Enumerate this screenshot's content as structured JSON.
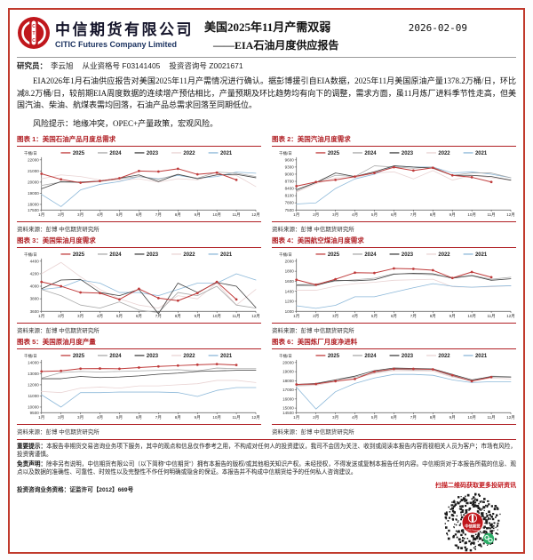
{
  "header": {
    "brand_zh": "中信期货有限公司",
    "brand_en": "CITIC Futures Company Limited",
    "title_line1": "美国2025年11月产需双弱",
    "title_line2": "——EIA石油月度供应报告",
    "date": "2026-02-09"
  },
  "researcher": {
    "label": "研究员：",
    "name": "李云旭",
    "cert1": "从业资格号 F03141405",
    "cert2": "投资咨询号 Z0021671"
  },
  "body": {
    "paragraph": "EIA2026年1月石油供应报告对美国2025年11月产需情况进行确认。据彭博援引自EIA数据，2025年11月美国原油产量1378.2万桶/日，环比减8.2万桶/日，较前期EIA周度数据的连续增产预估相比，产量预期及环比趋势均有向下的调整，需求方面，虽11月炼厂进料季节性走高，但美国汽油、柴油、航煤表需均回落，石油产品总需求回落至同期低位。",
    "risk": "风险提示：地缘冲突，OPEC+产量政策，宏观风险。"
  },
  "footer": {
    "notice_label": "重要提示：",
    "notice_text": "本报告非期货交易咨询业务项下服务，其中的观点和信息仅作参考之用，不构成对任何人的投资建议，我司不会因为关注、收到或阅读本报告内容而视相关人员为客户；市场有风险，投资需谨慎。",
    "disclaimer_label": "免责声明：",
    "disclaimer_text": "除非另有说明，中信期货有限公司（以下简称“中信期货”）拥有本报告的版权/或其他相关知识产权。未经授权，不得发送或复制本报告任何内容。中信期货对于本报告所载的信息、观点以及数据的准确性、可靠性、时效性以及完整性不作任何明确或隐含的保证。本报告并不构成中信期货给予的任何私人咨询建议。",
    "license": "投资咨询业务资格：证监许可【2012】669号",
    "qr_caption": "扫描二维码获取更多投研资讯",
    "qr_center_zh": "中信期货",
    "qr_center_en": "CITIC Futures"
  },
  "colors": {
    "frame_red": "#c0392b",
    "title_red": "#b01f24",
    "s2025": "#bf3a3a",
    "s2024": "#a8a8a8",
    "s2023": "#3f3f3f",
    "s2022": "#e9d3d3",
    "s2021": "#8cb8d9"
  },
  "chart_data": [
    {
      "type": "line",
      "title": "图表 1：美国石油产品月度总需求",
      "ylabel": "千桶/日",
      "source": "资料来源：彭博 中信期货研究所",
      "categories": [
        "1月",
        "2月",
        "3月",
        "4月",
        "5月",
        "6月",
        "7月",
        "8月",
        "9月",
        "10月",
        "11月",
        "12月"
      ],
      "yticks": [
        17500,
        18000,
        19000,
        20000,
        21000,
        22000
      ],
      "series": [
        {
          "name": "2025",
          "color": "#bf3a3a",
          "marker": true,
          "values": [
            20750,
            20250,
            19950,
            20100,
            20350,
            21000,
            20950,
            21200,
            20700,
            20850,
            20200
          ]
        },
        {
          "name": "2024",
          "color": "#a8a8a8",
          "values": [
            19700,
            20000,
            19950,
            20050,
            20300,
            20500,
            20250,
            20700,
            20350,
            20900,
            20800,
            20500
          ]
        },
        {
          "name": "2023",
          "color": "#3f3f3f",
          "values": [
            19400,
            20050,
            20000,
            20100,
            20350,
            20650,
            20050,
            20700,
            20300,
            20650,
            20700,
            20400
          ]
        },
        {
          "name": "2022",
          "color": "#e9d3d3",
          "values": [
            20300,
            20650,
            20500,
            20200,
            20150,
            20300,
            20000,
            20300,
            20200,
            20700,
            20600,
            19600
          ]
        },
        {
          "name": "2021",
          "color": "#8cb8d9",
          "values": [
            18900,
            17800,
            19300,
            19800,
            20050,
            20500,
            20300,
            20600,
            20350,
            20500,
            20900,
            20800
          ]
        }
      ]
    },
    {
      "type": "line",
      "title": "图表 2：美国汽油月度需求",
      "ylabel": "千桶/日",
      "source": "资料来源：彭博 中信期货研究所",
      "categories": [
        "1月",
        "2月",
        "3月",
        "4月",
        "5月",
        "6月",
        "7月",
        "8月",
        "9月",
        "10月",
        "11月",
        "12月"
      ],
      "yticks": [
        7500,
        7800,
        8100,
        8400,
        8700,
        9000,
        9300,
        9600
      ],
      "series": [
        {
          "name": "2025",
          "color": "#bf3a3a",
          "marker": true,
          "values": [
            8500,
            8670,
            8760,
            8900,
            9050,
            9290,
            9150,
            9270,
            8950,
            8870,
            8670
          ]
        },
        {
          "name": "2024",
          "color": "#a8a8a8",
          "values": [
            8300,
            8650,
            8950,
            8900,
            9350,
            9300,
            9250,
            9300,
            8950,
            9050,
            9050,
            8850
          ]
        },
        {
          "name": "2023",
          "color": "#3f3f3f",
          "values": [
            8350,
            8650,
            9050,
            8900,
            9100,
            9350,
            9300,
            9250,
            8950,
            8950,
            8900,
            8750
          ]
        },
        {
          "name": "2022",
          "color": "#e9d3d3",
          "values": [
            8250,
            8600,
            8850,
            8850,
            9050,
            9100,
            8800,
            9150,
            8750,
            8950,
            8850,
            8750
          ]
        },
        {
          "name": "2021",
          "color": "#8cb8d9",
          "values": [
            7750,
            7800,
            8400,
            8800,
            9000,
            9350,
            9300,
            9300,
            9050,
            9100,
            9000,
            8850
          ]
        }
      ]
    },
    {
      "type": "line",
      "title": "图表 3：美国柴油月度需求",
      "ylabel": "千桶/日",
      "source": "资料来源：彭博 中信期货研究所",
      "categories": [
        "1月",
        "2月",
        "3月",
        "4月",
        "5月",
        "6月",
        "7月",
        "8月",
        "9月",
        "10月",
        "11月",
        "12月"
      ],
      "yticks": [
        3600,
        3800,
        4000,
        4200,
        4400
      ],
      "series": [
        {
          "name": "2025",
          "color": "#bf3a3a",
          "marker": true,
          "values": [
            4070,
            4000,
            3900,
            3890,
            3790,
            3960,
            3810,
            3770,
            3890,
            4070,
            3790
          ]
        },
        {
          "name": "2024",
          "color": "#a8a8a8",
          "values": [
            3950,
            3850,
            3700,
            3650,
            3750,
            3620,
            3580,
            3900,
            3850,
            4000,
            3700,
            3650
          ]
        },
        {
          "name": "2023",
          "color": "#3f3f3f",
          "values": [
            3960,
            4100,
            4110,
            3900,
            3850,
            3950,
            3560,
            4050,
            3900,
            4060,
            4000,
            3660
          ]
        },
        {
          "name": "2022",
          "color": "#e9d3d3",
          "values": [
            4200,
            4380,
            4150,
            3950,
            3800,
            3700,
            3650,
            3850,
            3800,
            4050,
            3700,
            3950
          ]
        },
        {
          "name": "2021",
          "color": "#8cb8d9",
          "values": [
            3950,
            3980,
            4100,
            4050,
            3900,
            3900,
            3850,
            3950,
            4050,
            4050,
            4200,
            4100
          ]
        }
      ]
    },
    {
      "type": "line",
      "title": "图表 4：美国航空煤油月度需求",
      "ylabel": "千桶/日",
      "source": "资料来源：彭博 中信期货研究所",
      "categories": [
        "1月",
        "2月",
        "3月",
        "4月",
        "5月",
        "6月",
        "7月",
        "8月",
        "9月",
        "10月",
        "11月",
        "12月"
      ],
      "yticks": [
        1000,
        1200,
        1400,
        1600,
        1800,
        2000
      ],
      "series": [
        {
          "name": "2025",
          "color": "#bf3a3a",
          "marker": true,
          "values": [
            1630,
            1530,
            1640,
            1770,
            1765,
            1855,
            1845,
            1820,
            1665,
            1785,
            1680
          ]
        },
        {
          "name": "2024",
          "color": "#a8a8a8",
          "values": [
            1530,
            1545,
            1600,
            1630,
            1660,
            1750,
            1745,
            1730,
            1670,
            1720,
            1640,
            1680
          ]
        },
        {
          "name": "2023",
          "color": "#3f3f3f",
          "values": [
            1520,
            1515,
            1620,
            1610,
            1630,
            1740,
            1760,
            1750,
            1660,
            1710,
            1620,
            1650
          ]
        },
        {
          "name": "2022",
          "color": "#e9d3d3",
          "values": [
            1420,
            1420,
            1500,
            1550,
            1580,
            1620,
            1630,
            1640,
            1490,
            1480,
            1490,
            1510
          ]
        },
        {
          "name": "2021",
          "color": "#8cb8d9",
          "values": [
            1110,
            1060,
            1120,
            1290,
            1290,
            1380,
            1470,
            1550,
            1500,
            1480,
            1500,
            1510
          ]
        }
      ]
    },
    {
      "type": "line",
      "title": "图表 5：美国原油月度产量",
      "ylabel": "千桶/日",
      "source": "资料来源：彭博 中信期货研究所",
      "categories": [
        "1月",
        "2月",
        "3月",
        "4月",
        "5月",
        "6月",
        "7月",
        "8月",
        "9月",
        "10月",
        "11月",
        "12月"
      ],
      "yticks": [
        9500,
        10000,
        11000,
        12000,
        13000,
        14000
      ],
      "series": [
        {
          "name": "2025",
          "color": "#bf3a3a",
          "marker": true,
          "values": [
            13200,
            13250,
            13450,
            13460,
            13440,
            13550,
            13650,
            13720,
            13800,
            13860,
            13780
          ]
        },
        {
          "name": "2024",
          "color": "#a8a8a8",
          "values": [
            12600,
            13100,
            13200,
            13150,
            13200,
            13250,
            13300,
            13350,
            13250,
            13500,
            13450,
            13450
          ]
        },
        {
          "name": "2023",
          "color": "#3f3f3f",
          "values": [
            12550,
            12550,
            12750,
            12650,
            12700,
            12800,
            12950,
            13050,
            13200,
            13250,
            13300,
            13300
          ]
        },
        {
          "name": "2022",
          "color": "#e9d3d3",
          "values": [
            11400,
            11300,
            11700,
            11800,
            11700,
            11900,
            11900,
            12000,
            12100,
            12400,
            12400,
            12200
          ]
        },
        {
          "name": "2021",
          "color": "#8cb8d9",
          "values": [
            11100,
            10000,
            11300,
            11300,
            11350,
            11350,
            11350,
            11300,
            10950,
            11500,
            11750,
            11750
          ]
        }
      ]
    },
    {
      "type": "line",
      "title": "图表 6：美国炼厂月度净进料",
      "ylabel": "千桶/日",
      "source": "资料来源：彭博 中信期货研究所",
      "categories": [
        "1月",
        "2月",
        "3月",
        "4月",
        "5月",
        "6月",
        "7月",
        "8月",
        "9月",
        "10月",
        "11月",
        "12月"
      ],
      "yticks": [
        14500,
        15000,
        16000,
        17000,
        18000,
        19000,
        20000
      ],
      "series": [
        {
          "name": "2025",
          "color": "#bf3a3a",
          "marker": true,
          "values": [
            17600,
            17650,
            17950,
            18200,
            19000,
            19300,
            19300,
            19250,
            18600,
            17950,
            18400
          ]
        },
        {
          "name": "2024",
          "color": "#a8a8a8",
          "values": [
            17500,
            17600,
            18100,
            18400,
            18900,
            19250,
            19200,
            19200,
            18500,
            18000,
            18500,
            18450
          ]
        },
        {
          "name": "2023",
          "color": "#3f3f3f",
          "values": [
            17600,
            17700,
            18100,
            18500,
            19100,
            19400,
            19350,
            19300,
            18700,
            18100,
            18450,
            18400
          ]
        },
        {
          "name": "2022",
          "color": "#e9d3d3",
          "values": [
            17400,
            17500,
            17900,
            18250,
            18800,
            19100,
            19100,
            19050,
            18400,
            18000,
            18300,
            18200
          ]
        },
        {
          "name": "2021",
          "color": "#8cb8d9",
          "values": [
            17300,
            14900,
            16800,
            17700,
            18300,
            18700,
            18700,
            18600,
            18100,
            17800,
            17900,
            17900
          ]
        }
      ]
    }
  ]
}
